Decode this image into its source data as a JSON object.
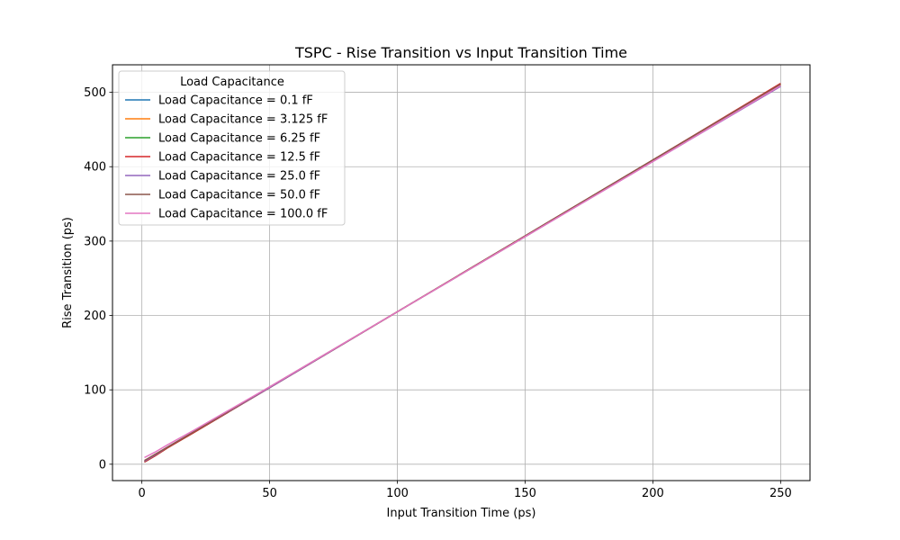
{
  "chart_data": {
    "type": "line",
    "title": "TSPC - Rise Transition vs Input Transition Time",
    "xlabel": "Input Transition Time (ps)",
    "ylabel": "Rise Transition (ps)",
    "xlim": [
      -11.5,
      261.5
    ],
    "ylim": [
      -22,
      537
    ],
    "xticks": [
      0,
      50,
      100,
      150,
      200,
      250
    ],
    "yticks": [
      0,
      100,
      200,
      300,
      400,
      500
    ],
    "grid": true,
    "legend": {
      "title": "Load Capacitance",
      "placement": "top-left"
    },
    "series": [
      {
        "name": "Load Capacitance = 0.1 fF",
        "color": "#1f77b4",
        "x": [
          1,
          5,
          10,
          20,
          50,
          100,
          150,
          200,
          250
        ],
        "y": [
          3,
          11,
          22,
          42,
          103,
          205,
          306,
          408,
          509
        ]
      },
      {
        "name": "Load Capacitance = 3.125 fF",
        "color": "#ff7f0e",
        "x": [
          1,
          5,
          10,
          20,
          50,
          100,
          150,
          200,
          250
        ],
        "y": [
          3,
          11,
          22,
          42,
          103,
          205,
          306,
          408,
          510
        ]
      },
      {
        "name": "Load Capacitance = 6.25 fF",
        "color": "#2ca02c",
        "x": [
          1,
          5,
          10,
          20,
          50,
          100,
          150,
          200,
          250
        ],
        "y": [
          3,
          11,
          22,
          42,
          103,
          205,
          307,
          409,
          511
        ]
      },
      {
        "name": "Load Capacitance = 12.5 fF",
        "color": "#d62728",
        "x": [
          1,
          5,
          10,
          20,
          50,
          100,
          150,
          200,
          250
        ],
        "y": [
          3,
          11,
          22,
          42,
          103,
          205,
          307,
          409,
          512
        ]
      },
      {
        "name": "Load Capacitance = 25.0 fF",
        "color": "#9467bd",
        "x": [
          1,
          5,
          10,
          20,
          50,
          100,
          150,
          200,
          250
        ],
        "y": [
          4,
          12,
          23,
          43,
          103,
          205,
          306,
          407,
          508
        ]
      },
      {
        "name": "Load Capacitance = 50.0 fF",
        "color": "#8c564b",
        "x": [
          1,
          5,
          10,
          20,
          50,
          100,
          150,
          200,
          250
        ],
        "y": [
          5,
          13,
          23,
          43,
          104,
          205,
          307,
          409,
          511
        ]
      },
      {
        "name": "Load Capacitance = 100.0 fF",
        "color": "#e377c2",
        "x": [
          1,
          5,
          10,
          20,
          50,
          100,
          150,
          200,
          250
        ],
        "y": [
          9,
          16,
          26,
          45,
          104,
          205,
          306,
          407,
          509
        ]
      }
    ]
  }
}
